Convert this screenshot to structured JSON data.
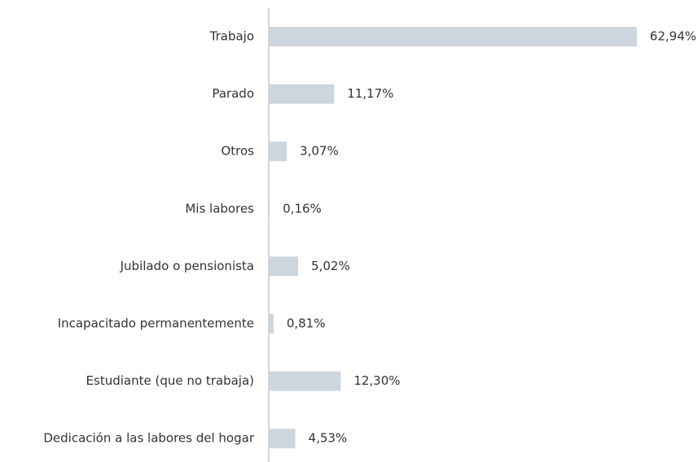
{
  "chart_data": {
    "type": "bar",
    "orientation": "horizontal",
    "color": "#cdd5df",
    "categories": [
      "Trabajo",
      "Parado",
      "Otros",
      "Mis labores",
      "Jubilado o pensionista",
      "Incapacitado permanentemente",
      "Estudiante (que no trabaja)",
      "Dedicación a las labores del hogar"
    ],
    "values": [
      62.94,
      11.17,
      3.07,
      0.16,
      5.02,
      0.81,
      12.3,
      4.53
    ],
    "value_labels": [
      "62,94%",
      "11,17%",
      "3,07%",
      "0,16%",
      "5,02%",
      "0,81%",
      "12,30%",
      "4,53%"
    ]
  }
}
